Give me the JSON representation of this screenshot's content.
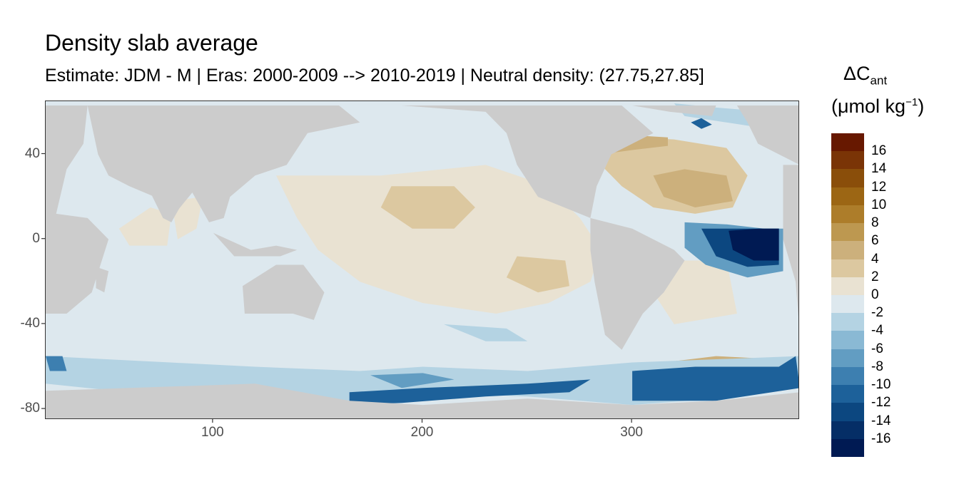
{
  "chart_data": {
    "type": "heatmap",
    "title": "Density slab average",
    "subtitle": "Estimate: JDM - M | Eras: 2000-2009 --> 2010-2019 | Neutral density: (27.75,27.85]",
    "xlabel": "",
    "ylabel": "",
    "xlim": [
      20,
      380
    ],
    "ylim": [
      -85,
      65
    ],
    "x_ticks": [
      100,
      200,
      300
    ],
    "y_ticks": [
      40,
      0,
      -40,
      -80
    ],
    "legend": {
      "title_main": "ΔC",
      "title_sub": "ant",
      "unit_prefix": "(μmol kg",
      "unit_sup": "−1",
      "unit_suffix": ")",
      "placement": "right",
      "labels": [
        "16",
        "14",
        "12",
        "10",
        "8",
        "6",
        "4",
        "2",
        "0",
        "-2",
        "-4",
        "-6",
        "-8",
        "-10",
        "-12",
        "-14",
        "-16"
      ],
      "breaks": [
        18,
        16,
        14,
        12,
        10,
        8,
        6,
        4,
        2,
        0,
        -2,
        -4,
        -6,
        -8,
        -10,
        -12,
        -14,
        -16,
        -18
      ],
      "colors": [
        "#671800",
        "#7a3406",
        "#8a4e0a",
        "#9c6614",
        "#ad7d2a",
        "#bd9850",
        "#ccb07c",
        "#dcc8a0",
        "#e9e2d2",
        "#dde8ee",
        "#b4d3e3",
        "#8ab9d4",
        "#629dc2",
        "#3d7fb0",
        "#1d619a",
        "#0c4780",
        "#052e66",
        "#001a53"
      ]
    },
    "land_color": "#cccccc",
    "ocean_base": 0,
    "regions": [
      {
        "name": "tropical-pacific",
        "value": 1,
        "poly": [
          [
            130,
            30
          ],
          [
            180,
            30
          ],
          [
            230,
            35
          ],
          [
            260,
            25
          ],
          [
            275,
            10
          ],
          [
            285,
            -5
          ],
          [
            280,
            -20
          ],
          [
            260,
            -30
          ],
          [
            235,
            -35
          ],
          [
            200,
            -30
          ],
          [
            170,
            -20
          ],
          [
            150,
            -5
          ],
          [
            140,
            10
          ]
        ]
      },
      {
        "name": "central-pacific",
        "value": 2.5,
        "poly": [
          [
            185,
            25
          ],
          [
            215,
            25
          ],
          [
            225,
            15
          ],
          [
            215,
            5
          ],
          [
            195,
            5
          ],
          [
            180,
            15
          ]
        ]
      },
      {
        "name": "southeast-pacific",
        "value": 2.5,
        "poly": [
          [
            245,
            -8
          ],
          [
            268,
            -10
          ],
          [
            270,
            -22
          ],
          [
            255,
            -25
          ],
          [
            240,
            -18
          ]
        ]
      },
      {
        "name": "north-atlantic",
        "value": 3,
        "poly": [
          [
            285,
            42
          ],
          [
            300,
            48
          ],
          [
            320,
            47
          ],
          [
            345,
            43
          ],
          [
            355,
            30
          ],
          [
            348,
            15
          ],
          [
            330,
            12
          ],
          [
            310,
            15
          ],
          [
            295,
            25
          ],
          [
            285,
            35
          ]
        ]
      },
      {
        "name": "north-atlantic-core",
        "value": 5,
        "poly": [
          [
            310,
            30
          ],
          [
            325,
            33
          ],
          [
            345,
            30
          ],
          [
            348,
            18
          ],
          [
            330,
            15
          ],
          [
            315,
            20
          ]
        ]
      },
      {
        "name": "labrador-edge",
        "value": 6,
        "poly": [
          [
            283,
            44
          ],
          [
            300,
            49
          ],
          [
            317,
            48
          ],
          [
            317,
            44
          ],
          [
            300,
            42
          ],
          [
            285,
            40
          ]
        ]
      },
      {
        "name": "west-indian",
        "value": 1.5,
        "poly": [
          [
            55,
            5
          ],
          [
            70,
            15
          ],
          [
            80,
            12
          ],
          [
            78,
            -3
          ],
          [
            60,
            -3
          ]
        ]
      },
      {
        "name": "bay-of-bengal",
        "value": 2,
        "poly": [
          [
            80,
            18
          ],
          [
            95,
            20
          ],
          [
            92,
            5
          ],
          [
            83,
            0
          ]
        ]
      },
      {
        "name": "south-atlantic",
        "value": 1,
        "poly": [
          [
            325,
            -10
          ],
          [
            345,
            -10
          ],
          [
            350,
            -35
          ],
          [
            320,
            -40
          ],
          [
            310,
            -25
          ]
        ]
      },
      {
        "name": "southern-indian-brown",
        "value": 4,
        "poly": [
          [
            28,
            -60
          ],
          [
            60,
            -62
          ],
          [
            90,
            -60
          ],
          [
            110,
            -62
          ],
          [
            140,
            -64
          ],
          [
            140,
            -72
          ],
          [
            100,
            -70
          ],
          [
            60,
            -70
          ],
          [
            30,
            -68
          ]
        ]
      },
      {
        "name": "weddell-brown",
        "value": 5,
        "poly": [
          [
            315,
            -58
          ],
          [
            340,
            -55
          ],
          [
            360,
            -56
          ],
          [
            365,
            -62
          ],
          [
            340,
            -65
          ],
          [
            318,
            -64
          ]
        ]
      },
      {
        "name": "ross-brown",
        "value": 4,
        "poly": [
          [
            190,
            -65
          ],
          [
            205,
            -63
          ],
          [
            215,
            -66
          ],
          [
            208,
            -71
          ],
          [
            195,
            -70
          ]
        ]
      },
      {
        "name": "subpolar-na",
        "value": -3,
        "poly": [
          [
            320,
            64
          ],
          [
            340,
            62
          ],
          [
            365,
            60
          ],
          [
            365,
            52
          ],
          [
            345,
            55
          ],
          [
            325,
            58
          ]
        ]
      },
      {
        "name": "irminger",
        "value": -10,
        "poly": [
          [
            328,
            55
          ],
          [
            333,
            57
          ],
          [
            338,
            54
          ],
          [
            333,
            52
          ]
        ]
      },
      {
        "name": "southern-ocean-blue",
        "value": -3,
        "poly": [
          [
            20,
            -55
          ],
          [
            60,
            -57
          ],
          [
            120,
            -60
          ],
          [
            170,
            -62
          ],
          [
            200,
            -60
          ],
          [
            250,
            -62
          ],
          [
            300,
            -58
          ],
          [
            380,
            -55
          ],
          [
            380,
            -68
          ],
          [
            340,
            -75
          ],
          [
            300,
            -78
          ],
          [
            250,
            -74
          ],
          [
            200,
            -72
          ],
          [
            165,
            -76
          ],
          [
            120,
            -70
          ],
          [
            60,
            -72
          ],
          [
            20,
            -68
          ]
        ]
      },
      {
        "name": "weddell-blue",
        "value": -10,
        "poly": [
          [
            300,
            -62
          ],
          [
            330,
            -60
          ],
          [
            370,
            -60
          ],
          [
            378,
            -55
          ],
          [
            380,
            -70
          ],
          [
            340,
            -76
          ],
          [
            300,
            -76
          ]
        ]
      },
      {
        "name": "ross-blue",
        "value": -10,
        "poly": [
          [
            165,
            -72
          ],
          [
            200,
            -70
          ],
          [
            250,
            -68
          ],
          [
            280,
            -66
          ],
          [
            270,
            -72
          ],
          [
            230,
            -74
          ],
          [
            190,
            -77
          ],
          [
            165,
            -78
          ]
        ]
      },
      {
        "name": "pacific-sector-blue",
        "value": -6,
        "poly": [
          [
            175,
            -64
          ],
          [
            200,
            -63
          ],
          [
            215,
            -66
          ],
          [
            190,
            -70
          ]
        ]
      },
      {
        "name": "eq-atlantic-outer",
        "value": -6,
        "poly": [
          [
            325,
            8
          ],
          [
            345,
            7
          ],
          [
            363,
            5
          ],
          [
            372,
            5
          ],
          [
            372,
            -15
          ],
          [
            355,
            -18
          ],
          [
            335,
            -12
          ],
          [
            325,
            -4
          ]
        ]
      },
      {
        "name": "eq-atlantic-mid",
        "value": -12,
        "poly": [
          [
            333,
            5
          ],
          [
            352,
            5
          ],
          [
            370,
            5
          ],
          [
            370,
            -12
          ],
          [
            355,
            -13
          ],
          [
            340,
            -8
          ]
        ]
      },
      {
        "name": "eq-atlantic-core",
        "value": -17,
        "poly": [
          [
            346,
            4
          ],
          [
            360,
            5
          ],
          [
            370,
            5
          ],
          [
            370,
            -10
          ],
          [
            358,
            -10
          ],
          [
            348,
            -5
          ]
        ]
      },
      {
        "name": "southwest-indian-blue",
        "value": -8,
        "poly": [
          [
            20,
            -55
          ],
          [
            28,
            -55
          ],
          [
            30,
            -62
          ],
          [
            22,
            -62
          ]
        ]
      },
      {
        "name": "south-pacific-streak",
        "value": -3,
        "poly": [
          [
            210,
            -40
          ],
          [
            240,
            -42
          ],
          [
            250,
            -48
          ],
          [
            230,
            -48
          ]
        ]
      }
    ],
    "land": [
      {
        "name": "africa-europe",
        "poly": [
          [
            0,
            63
          ],
          [
            40,
            63
          ],
          [
            38,
            45
          ],
          [
            30,
            33
          ],
          [
            25,
            12
          ],
          [
            40,
            10
          ],
          [
            50,
            0
          ],
          [
            42,
            -25
          ],
          [
            30,
            -35
          ],
          [
            20,
            -35
          ],
          [
            0,
            -10
          ]
        ]
      },
      {
        "name": "asia",
        "poly": [
          [
            40,
            63
          ],
          [
            160,
            63
          ],
          [
            170,
            55
          ],
          [
            145,
            50
          ],
          [
            135,
            35
          ],
          [
            120,
            30
          ],
          [
            108,
            20
          ],
          [
            105,
            10
          ],
          [
            98,
            8
          ],
          [
            90,
            22
          ],
          [
            80,
            10
          ],
          [
            72,
            20
          ],
          [
            60,
            25
          ],
          [
            50,
            30
          ],
          [
            45,
            40
          ]
        ]
      },
      {
        "name": "india",
        "poly": [
          [
            70,
            22
          ],
          [
            88,
            22
          ],
          [
            80,
            8
          ],
          [
            76,
            10
          ]
        ]
      },
      {
        "name": "australia",
        "poly": [
          [
            114,
            -22
          ],
          [
            130,
            -12
          ],
          [
            143,
            -12
          ],
          [
            153,
            -25
          ],
          [
            148,
            -38
          ],
          [
            138,
            -35
          ],
          [
            115,
            -35
          ]
        ]
      },
      {
        "name": "north-america",
        "poly": [
          [
            190,
            63
          ],
          [
            230,
            60
          ],
          [
            240,
            50
          ],
          [
            245,
            35
          ],
          [
            255,
            20
          ],
          [
            275,
            12
          ],
          [
            280,
            10
          ],
          [
            283,
            25
          ],
          [
            290,
            40
          ],
          [
            300,
            45
          ],
          [
            310,
            50
          ],
          [
            295,
            63
          ]
        ]
      },
      {
        "name": "south-america",
        "poly": [
          [
            280,
            10
          ],
          [
            300,
            5
          ],
          [
            320,
            -5
          ],
          [
            325,
            -10
          ],
          [
            315,
            -25
          ],
          [
            305,
            -35
          ],
          [
            295,
            -52
          ],
          [
            287,
            -45
          ],
          [
            282,
            -20
          ],
          [
            280,
            -5
          ]
        ]
      },
      {
        "name": "greenland",
        "poly": [
          [
            300,
            63
          ],
          [
            340,
            63
          ],
          [
            338,
            58
          ],
          [
            318,
            60
          ]
        ]
      },
      {
        "name": "europe-ne",
        "poly": [
          [
            350,
            63
          ],
          [
            380,
            63
          ],
          [
            380,
            35
          ],
          [
            370,
            40
          ],
          [
            360,
            45
          ],
          [
            355,
            55
          ]
        ]
      },
      {
        "name": "africa-east",
        "poly": [
          [
            372,
            35
          ],
          [
            380,
            35
          ],
          [
            380,
            -45
          ],
          [
            378,
            -20
          ],
          [
            372,
            0
          ]
        ]
      },
      {
        "name": "antarctica",
        "poly": [
          [
            0,
            -72
          ],
          [
            60,
            -70
          ],
          [
            120,
            -68
          ],
          [
            165,
            -76
          ],
          [
            200,
            -78
          ],
          [
            250,
            -75
          ],
          [
            300,
            -78
          ],
          [
            340,
            -76
          ],
          [
            380,
            -72
          ],
          [
            380,
            -90
          ],
          [
            0,
            -90
          ]
        ]
      },
      {
        "name": "madagascar",
        "poly": [
          [
            44,
            -13
          ],
          [
            50,
            -15
          ],
          [
            48,
            -25
          ],
          [
            44,
            -23
          ]
        ]
      },
      {
        "name": "indonesia",
        "poly": [
          [
            100,
            3
          ],
          [
            118,
            -5
          ],
          [
            130,
            -3
          ],
          [
            140,
            -5
          ],
          [
            132,
            -8
          ],
          [
            110,
            -8
          ]
        ]
      }
    ]
  }
}
